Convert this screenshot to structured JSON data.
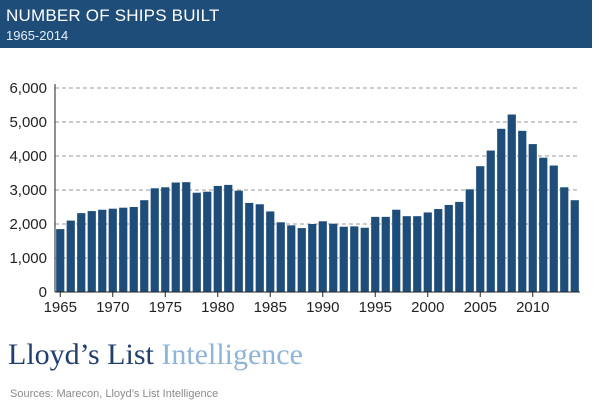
{
  "header": {
    "title": "NUMBER OF SHIPS BUILT",
    "subtitle": "1965-2014"
  },
  "brand": {
    "part1": "Lloyd’s List",
    "part2": "Intelligence"
  },
  "source": "Sources: Marecon, Lloyd’s List Intelligence",
  "colors": {
    "header_bg": "#1f4d7a",
    "bar": "#1f4d7a",
    "grid": "#9a9a9a"
  },
  "chart_data": {
    "type": "bar",
    "title": "NUMBER OF SHIPS BUILT",
    "subtitle": "1965-2014",
    "xlabel": "",
    "ylabel": "",
    "ylim": [
      0,
      6000
    ],
    "yticks": [
      0,
      1000,
      2000,
      3000,
      4000,
      5000,
      6000
    ],
    "ytick_labels": [
      "0",
      "1,000",
      "2,000",
      "3,000",
      "4,000",
      "5,000",
      "6,000"
    ],
    "xtick_labels": [
      "1965",
      "1970",
      "1975",
      "1980",
      "1985",
      "1990",
      "1995",
      "2000",
      "2005",
      "2010"
    ],
    "grid": true,
    "categories": [
      1965,
      1966,
      1967,
      1968,
      1969,
      1970,
      1971,
      1972,
      1973,
      1974,
      1975,
      1976,
      1977,
      1978,
      1979,
      1980,
      1981,
      1982,
      1983,
      1984,
      1985,
      1986,
      1987,
      1988,
      1989,
      1990,
      1991,
      1992,
      1993,
      1994,
      1995,
      1996,
      1997,
      1998,
      1999,
      2000,
      2001,
      2002,
      2003,
      2004,
      2005,
      2006,
      2007,
      2008,
      2009,
      2010,
      2011,
      2012,
      2013,
      2014
    ],
    "values": [
      1850,
      2100,
      2320,
      2380,
      2420,
      2450,
      2480,
      2500,
      2700,
      3050,
      3080,
      3220,
      3230,
      2920,
      2950,
      3120,
      3150,
      2980,
      2620,
      2580,
      2370,
      2050,
      1960,
      1880,
      2000,
      2080,
      2010,
      1920,
      1930,
      1890,
      2210,
      2210,
      2420,
      2230,
      2230,
      2340,
      2440,
      2560,
      2650,
      3020,
      3700,
      4160,
      4800,
      5220,
      4740,
      4350,
      3950,
      3720,
      3080,
      2700
    ]
  }
}
